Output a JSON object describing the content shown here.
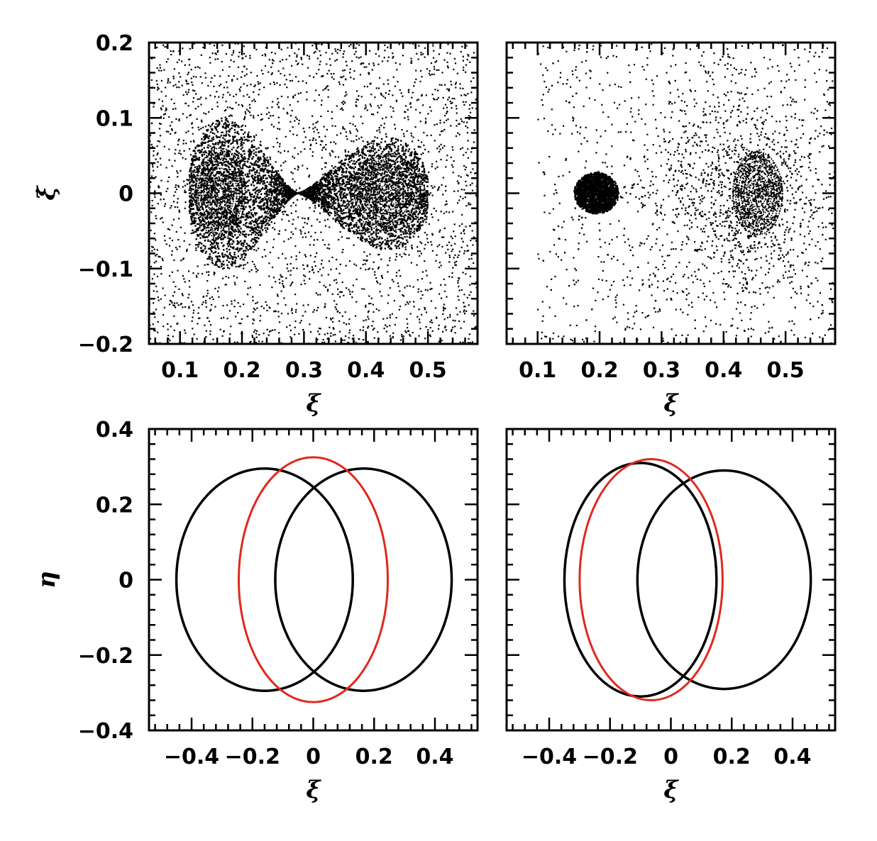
{
  "figure": {
    "colors": {
      "black_series": "#000000",
      "red_series": "#e0281e"
    }
  },
  "chart_data": [
    {
      "id": "top-left",
      "type": "scatter",
      "title": "",
      "xlabel": "ξ",
      "ylabel": "ξ̇",
      "xlim": [
        0.05,
        0.58
      ],
      "ylim": [
        -0.2,
        0.2
      ],
      "xticks": [
        "0.1",
        "0.2",
        "0.3",
        "0.4",
        "0.5"
      ],
      "yticks": [
        "0.2",
        "0.1",
        "0",
        "−0.1",
        "−0.2"
      ],
      "grid": false,
      "points_description": "surface of section: stable islands centered near ξ=0.165 and ξ=0.435 at ξ̇=0, separatrix crossing near ξ=0.29, lobes reaching ξ̇≈±0.12 (left) and ±0.09 (right), chaotic sea filling the panel",
      "features": {
        "islands": [
          {
            "center": [
              0.165,
              0
            ],
            "rx": 0.04,
            "ry": 0.06
          },
          {
            "center": [
              0.435,
              0
            ],
            "rx": 0.06,
            "ry": 0.05
          }
        ],
        "separatrix_x": 0.29,
        "lobes": [
          {
            "x_range": [
              0.115,
              0.29
            ],
            "max_ydot": 0.122
          },
          {
            "x_range": [
              0.29,
              0.5
            ],
            "max_ydot": 0.092
          }
        ]
      }
    },
    {
      "id": "top-right",
      "type": "scatter",
      "title": "",
      "xlabel": "ξ",
      "ylabel": "",
      "xlim": [
        0.05,
        0.58
      ],
      "ylim": [
        -0.2,
        0.2
      ],
      "xticks": [
        "0.1",
        "0.2",
        "0.3",
        "0.4",
        "0.5"
      ],
      "yticks": [],
      "grid": false,
      "points_description": "surface of section: small dense island near ξ=0.195, large island near ξ=0.455, chaotic sea extending to ξ̇≈±0.15",
      "features": {
        "islands": [
          {
            "center": [
              0.195,
              0
            ],
            "rx": 0.03,
            "ry": 0.025
          },
          {
            "center": [
              0.455,
              0
            ],
            "rx": 0.04,
            "ry": 0.055
          }
        ],
        "separatrix_x": 0.25
      }
    },
    {
      "id": "bottom-left",
      "type": "line",
      "title": "",
      "xlabel": "ξ",
      "ylabel": "η",
      "xlim": [
        -0.54,
        0.54
      ],
      "ylim": [
        -0.4,
        0.4
      ],
      "xticks": [
        "−0.4",
        "−0.2",
        "0",
        "0.2",
        "0.4"
      ],
      "yticks": [
        "0.4",
        "0.2",
        "0",
        "−0.2",
        "−0.4"
      ],
      "grid": false,
      "series": [
        {
          "color": "#000000",
          "shape": "ellipse",
          "center": [
            -0.16,
            0
          ],
          "rx": 0.29,
          "ry": 0.295
        },
        {
          "color": "#000000",
          "shape": "ellipse",
          "center": [
            0.165,
            0
          ],
          "rx": 0.29,
          "ry": 0.295
        },
        {
          "color": "#e0281e",
          "shape": "ellipse",
          "center": [
            0.0,
            0
          ],
          "rx": 0.245,
          "ry": 0.325
        }
      ]
    },
    {
      "id": "bottom-right",
      "type": "line",
      "title": "",
      "xlabel": "ξ",
      "ylabel": "",
      "xlim": [
        -0.54,
        0.54
      ],
      "ylim": [
        -0.4,
        0.4
      ],
      "xticks": [
        "−0.4",
        "−0.2",
        "0",
        "0.2",
        "0.4"
      ],
      "yticks": [],
      "grid": false,
      "series": [
        {
          "color": "#000000",
          "shape": "ellipse",
          "center": [
            -0.1,
            0
          ],
          "rx": 0.25,
          "ry": 0.31
        },
        {
          "color": "#000000",
          "shape": "ellipse",
          "center": [
            0.175,
            0
          ],
          "rx": 0.285,
          "ry": 0.29
        },
        {
          "color": "#e0281e",
          "shape": "ellipse",
          "center": [
            -0.065,
            0
          ],
          "rx": 0.235,
          "ry": 0.32
        }
      ]
    }
  ]
}
